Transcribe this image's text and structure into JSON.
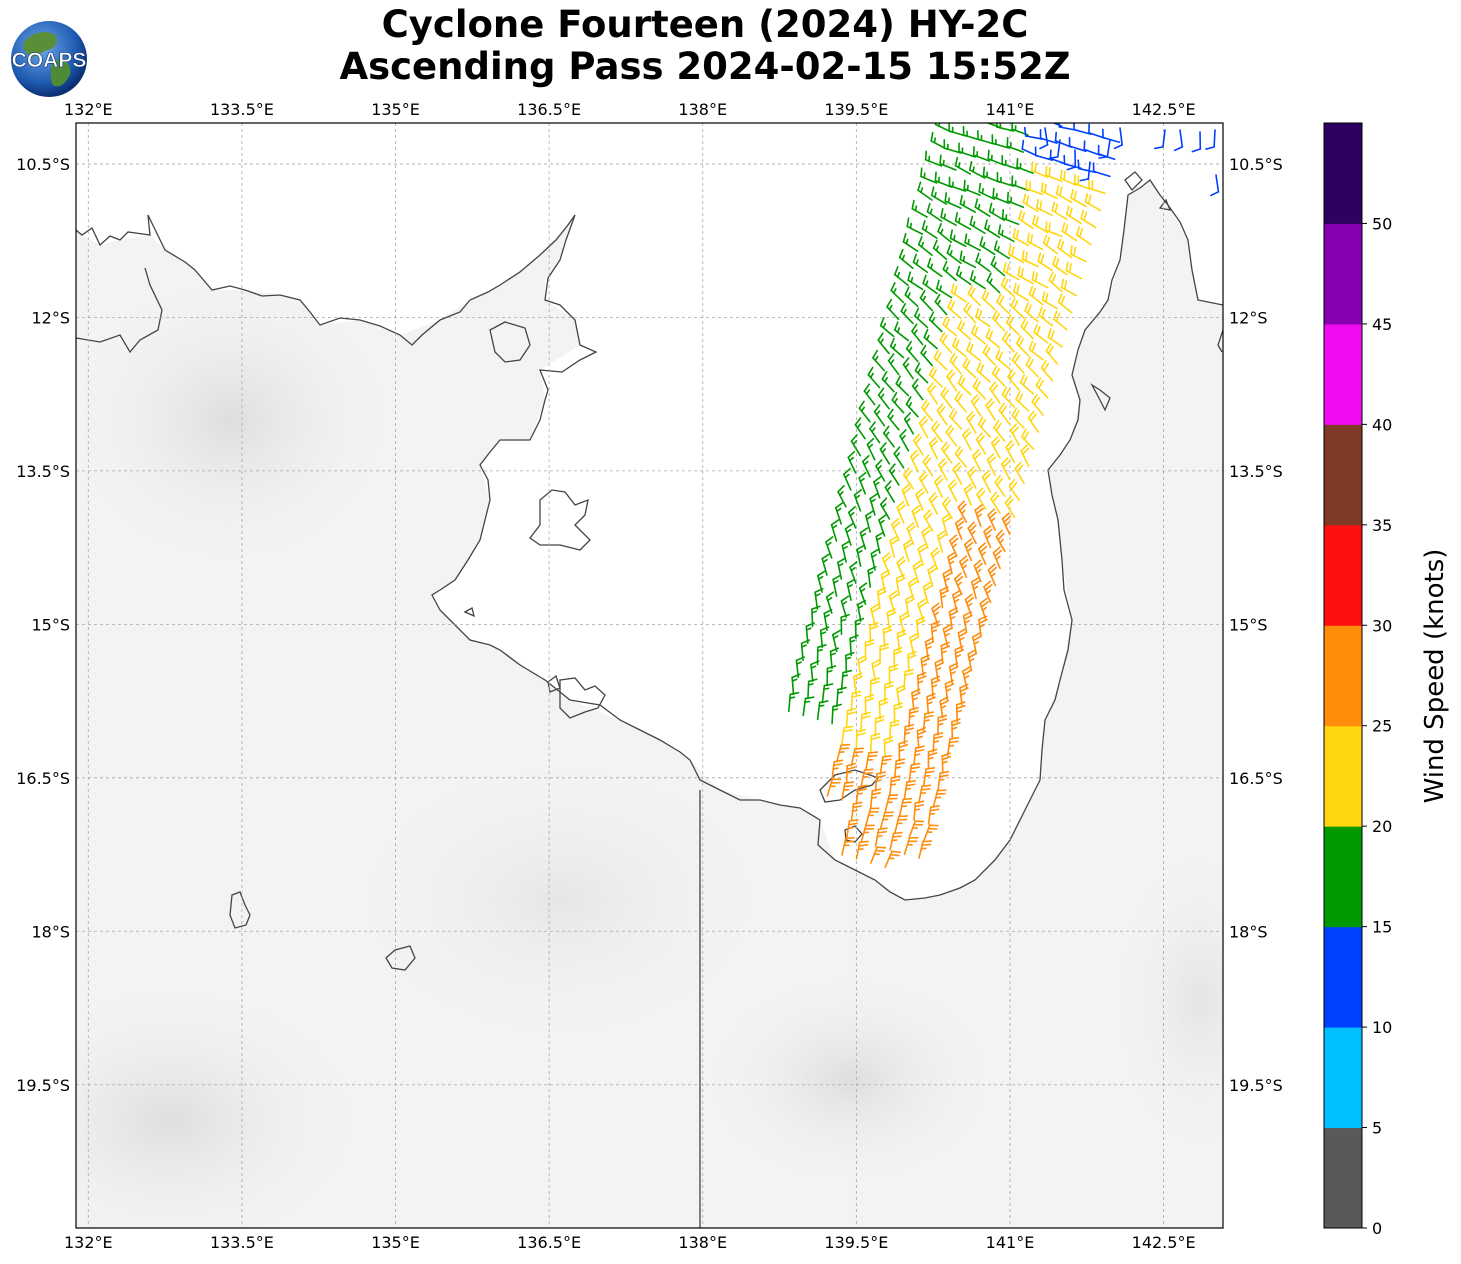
{
  "title": {
    "line1": "Cyclone Fourteen (2024) HY-2C",
    "line2": "Ascending Pass 2024-02-15 15:52Z"
  },
  "logo": {
    "text": "COAPS"
  },
  "map": {
    "lon_labels": [
      "132°E",
      "133.5°E",
      "135°E",
      "136.5°E",
      "138°E",
      "139.5°E",
      "141°E",
      "142.5°E"
    ],
    "lat_labels": [
      "10.5°S",
      "12°S",
      "13.5°S",
      "15°S",
      "16.5°S",
      "18°S",
      "19.5°S"
    ],
    "lon_range": [
      131.88,
      143.08
    ],
    "lat_range": [
      -10.1,
      -20.9
    ],
    "coastline_color": "#444444",
    "grid": true
  },
  "colorbar": {
    "title": "Wind Speed (knots)",
    "ticks": [
      "0",
      "5",
      "10",
      "15",
      "20",
      "25",
      "30",
      "35",
      "40",
      "45",
      "50"
    ],
    "colors": [
      "#595959",
      "#00bfff",
      "#0040ff",
      "#009a00",
      "#ffd60f",
      "#ff8c0a",
      "#ff1010",
      "#7f3a26",
      "#f00cf0",
      "#8600b0",
      "#2e0060"
    ]
  },
  "wind_barbs": {
    "units": "knots",
    "color_scale": "colorbar",
    "regions": [
      {
        "name": "north",
        "speed_range": [
          10,
          15
        ]
      },
      {
        "name": "inner-swath",
        "speed_range": [
          15,
          20
        ]
      },
      {
        "name": "central-swath",
        "speed_range": [
          20,
          25
        ]
      },
      {
        "name": "south-east",
        "speed_range": [
          25,
          30
        ]
      }
    ]
  }
}
